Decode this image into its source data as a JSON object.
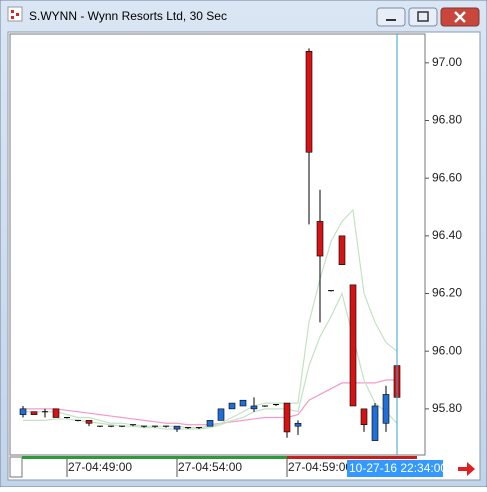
{
  "window_title": "S.WYNN - Wynn Resorts Ltd, 30 Sec",
  "chart_data": {
    "type": "candlestick",
    "categories": [
      null,
      null,
      null,
      null,
      "27-04:49:00",
      null,
      null,
      null,
      null,
      null,
      null,
      null,
      null,
      null,
      "27-04:54:00",
      null,
      null,
      null,
      null,
      null,
      null,
      null,
      null,
      null,
      "27-04:59:00",
      null,
      null,
      null,
      null,
      null,
      null,
      null,
      null,
      null,
      null
    ],
    "open": [
      95.78,
      95.79,
      95.79,
      95.8,
      95.77,
      95.76,
      95.76,
      95.74,
      95.74,
      95.74,
      95.745,
      95.74,
      95.74,
      95.74,
      95.73,
      95.735,
      95.735,
      95.74,
      95.76,
      95.8,
      95.81,
      95.8,
      95.81,
      95.81,
      95.82,
      95.74,
      97.04,
      96.45,
      96.21,
      96.4,
      96.23,
      95.8,
      95.69,
      95.75,
      95.95
    ],
    "high": [
      95.81,
      95.79,
      95.8,
      95.8,
      95.77,
      95.76,
      95.76,
      95.74,
      95.74,
      95.74,
      95.745,
      95.74,
      95.74,
      95.74,
      95.74,
      95.735,
      95.735,
      95.76,
      95.8,
      95.82,
      95.83,
      95.84,
      95.81,
      95.815,
      95.82,
      95.76,
      97.05,
      96.56,
      96.21,
      96.4,
      96.23,
      95.8,
      95.82,
      95.88,
      95.95
    ],
    "low": [
      95.77,
      95.78,
      95.77,
      95.77,
      95.77,
      95.76,
      95.74,
      95.74,
      95.74,
      95.74,
      95.74,
      95.735,
      95.735,
      95.735,
      95.72,
      95.73,
      95.73,
      95.74,
      95.76,
      95.8,
      95.81,
      95.79,
      95.81,
      95.81,
      95.7,
      95.71,
      96.44,
      96.1,
      96.21,
      96.3,
      95.81,
      95.72,
      95.69,
      95.72,
      95.84
    ],
    "close": [
      95.8,
      95.78,
      95.79,
      95.77,
      95.77,
      95.76,
      95.75,
      95.74,
      95.74,
      95.74,
      95.74,
      95.735,
      95.735,
      95.735,
      95.74,
      95.73,
      95.73,
      95.76,
      95.8,
      95.82,
      95.83,
      95.81,
      95.81,
      95.815,
      95.72,
      95.75,
      96.69,
      96.33,
      96.21,
      96.3,
      95.81,
      95.745,
      95.81,
      95.85,
      95.84
    ],
    "up_color": "#1f6fd6",
    "down_color": "#d41414",
    "lines": [
      {
        "color": "#f49ac8",
        "values": [
          95.8,
          95.8,
          95.8,
          95.8,
          95.795,
          95.79,
          95.785,
          95.78,
          95.775,
          95.77,
          95.765,
          95.76,
          95.755,
          95.75,
          95.75,
          95.745,
          95.745,
          95.745,
          95.75,
          95.755,
          95.76,
          95.765,
          95.77,
          95.77,
          95.77,
          95.78,
          95.83,
          95.85,
          95.87,
          95.89,
          95.89,
          95.89,
          95.89,
          95.9,
          95.9
        ]
      },
      {
        "color": "#c4e2c4",
        "values": [
          95.79,
          95.79,
          95.79,
          95.79,
          95.78,
          95.77,
          95.77,
          95.76,
          95.75,
          95.75,
          95.745,
          95.74,
          95.74,
          95.74,
          95.74,
          95.735,
          95.735,
          95.74,
          95.75,
          95.77,
          95.79,
          95.81,
          95.82,
          95.82,
          95.82,
          95.82,
          96.1,
          96.25,
          96.38,
          96.45,
          96.49,
          96.2,
          96.1,
          96.03,
          96.0
        ]
      },
      {
        "color": "#c4e2c4",
        "values": [
          95.76,
          95.76,
          95.76,
          95.765,
          95.765,
          95.76,
          95.755,
          95.75,
          95.745,
          95.74,
          95.74,
          95.735,
          95.735,
          95.73,
          95.73,
          95.73,
          95.73,
          95.735,
          95.745,
          95.76,
          95.77,
          95.79,
          95.8,
          95.8,
          95.8,
          95.79,
          95.95,
          96.05,
          96.12,
          96.2,
          96.05,
          95.9,
          95.82,
          95.79,
          95.75
        ]
      }
    ],
    "ylim": [
      95.64,
      97.1
    ],
    "yticks": [
      {
        "value": 95.8,
        "label": "95.80"
      },
      {
        "value": 96.0,
        "label": "96.00"
      },
      {
        "value": 96.2,
        "label": "96.20"
      },
      {
        "value": 96.4,
        "label": "96.40"
      },
      {
        "value": 96.6,
        "label": "96.60"
      },
      {
        "value": 96.8,
        "label": "96.80"
      },
      {
        "value": 97.0,
        "label": "97.00"
      }
    ],
    "crosshair_label": "10-27-16 22:34:00"
  }
}
